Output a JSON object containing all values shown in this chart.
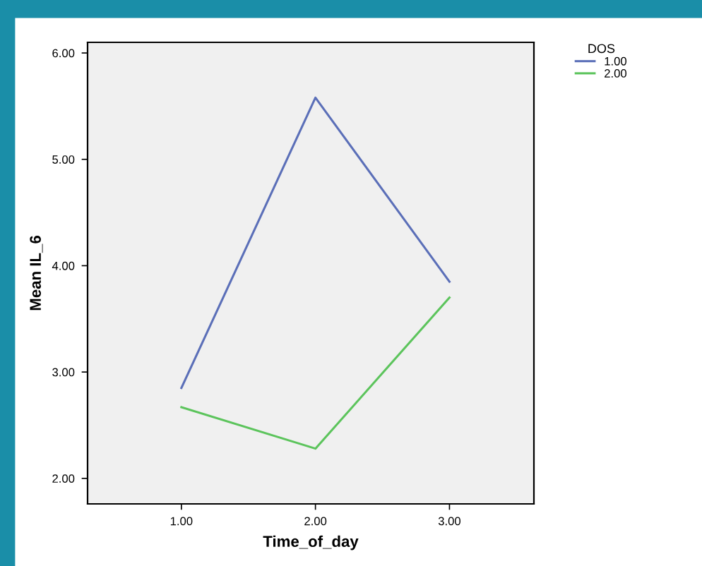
{
  "chart_data": {
    "type": "line",
    "xlabel": "Time_of_day",
    "ylabel": "Mean IL_6",
    "legend_title": "DOS",
    "legend": "top right",
    "x": [
      1,
      2,
      3
    ],
    "series": [
      {
        "name": "1.00",
        "color": "#5b6fb8",
        "values": [
          2.85,
          5.58,
          3.85
        ]
      },
      {
        "name": "2.00",
        "color": "#5cc45c",
        "values": [
          2.67,
          2.28,
          3.7
        ]
      }
    ],
    "xlim": [
      0.3,
      3.63
    ],
    "ylim": [
      1.76,
      6.1
    ],
    "xticks": [
      {
        "value": 1,
        "label": "1.00"
      },
      {
        "value": 2,
        "label": "2.00"
      },
      {
        "value": 3,
        "label": "3.00"
      }
    ],
    "yticks": [
      {
        "value": 2,
        "label": "2.00"
      },
      {
        "value": 3,
        "label": "3.00"
      },
      {
        "value": 4,
        "label": "4.00"
      },
      {
        "value": 5,
        "label": "5.00"
      },
      {
        "value": 6,
        "label": "6.00"
      }
    ],
    "grid": false,
    "marker": "none",
    "line_style": "solid"
  }
}
